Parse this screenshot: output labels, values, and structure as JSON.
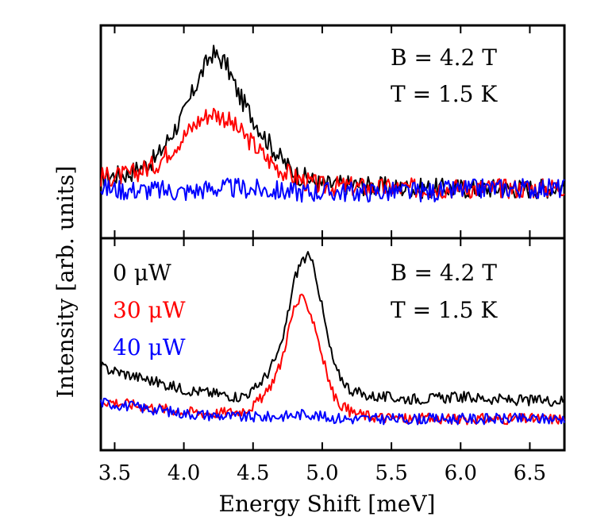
{
  "chart_data": [
    {
      "type": "line",
      "panel": "top",
      "xlim": [
        3.4,
        6.75
      ],
      "ylim": [
        -0.15,
        1.0
      ],
      "annotations": [
        "B = 4.2 T",
        "T = 1.5 K"
      ],
      "series": [
        {
          "name": "0 μW",
          "color": "#000000",
          "x": [
            3.4,
            3.6,
            3.8,
            4.0,
            4.1,
            4.2,
            4.3,
            4.4,
            4.5,
            4.6,
            4.7,
            4.8,
            4.9,
            5.0,
            5.2,
            5.4,
            5.6,
            5.8,
            6.0,
            6.2,
            6.4,
            6.6,
            6.75
          ],
          "values": [
            0.18,
            0.2,
            0.28,
            0.52,
            0.7,
            0.85,
            0.8,
            0.62,
            0.5,
            0.38,
            0.28,
            0.2,
            0.17,
            0.14,
            0.14,
            0.13,
            0.12,
            0.12,
            0.12,
            0.12,
            0.12,
            0.12,
            0.13
          ]
        },
        {
          "name": "30 μW",
          "color": "#ff0000",
          "x": [
            3.4,
            3.6,
            3.8,
            4.0,
            4.1,
            4.2,
            4.3,
            4.4,
            4.5,
            4.6,
            4.7,
            4.8,
            4.9,
            5.0,
            5.2,
            5.4,
            5.6,
            5.8,
            6.0,
            6.2,
            6.4,
            6.6,
            6.75
          ],
          "values": [
            0.18,
            0.19,
            0.25,
            0.4,
            0.48,
            0.53,
            0.5,
            0.43,
            0.36,
            0.28,
            0.22,
            0.18,
            0.15,
            0.13,
            0.13,
            0.12,
            0.12,
            0.12,
            0.12,
            0.12,
            0.12,
            0.12,
            0.13
          ]
        },
        {
          "name": "40 μW",
          "color": "#0000ff",
          "x": [
            3.4,
            3.6,
            3.8,
            4.0,
            4.2,
            4.4,
            4.6,
            4.8,
            5.0,
            5.2,
            5.4,
            5.6,
            5.8,
            6.0,
            6.2,
            6.4,
            6.6,
            6.75
          ],
          "values": [
            0.12,
            0.11,
            0.11,
            0.1,
            0.12,
            0.12,
            0.11,
            0.1,
            0.1,
            0.1,
            0.1,
            0.1,
            0.1,
            0.11,
            0.12,
            0.12,
            0.12,
            0.12
          ]
        }
      ]
    },
    {
      "type": "line",
      "panel": "bottom",
      "xlim": [
        3.4,
        6.75
      ],
      "ylim": [
        -0.15,
        1.0
      ],
      "annotations": [
        "B = 4.2 T",
        "T = 1.5 K"
      ],
      "series": [
        {
          "name": "0 μW",
          "color": "#000000",
          "x": [
            3.4,
            3.6,
            3.8,
            4.0,
            4.2,
            4.4,
            4.5,
            4.6,
            4.7,
            4.75,
            4.8,
            4.85,
            4.9,
            4.95,
            5.0,
            5.05,
            5.1,
            5.2,
            5.3,
            5.4,
            5.6,
            5.8,
            6.0,
            6.2,
            6.4,
            6.6,
            6.75
          ],
          "values": [
            0.3,
            0.26,
            0.22,
            0.18,
            0.16,
            0.14,
            0.17,
            0.26,
            0.4,
            0.58,
            0.78,
            0.88,
            0.9,
            0.82,
            0.62,
            0.42,
            0.28,
            0.18,
            0.15,
            0.14,
            0.13,
            0.13,
            0.14,
            0.13,
            0.12,
            0.12,
            0.12
          ]
        },
        {
          "name": "30 μW",
          "color": "#ff0000",
          "x": [
            3.4,
            3.6,
            3.8,
            4.0,
            4.2,
            4.4,
            4.5,
            4.6,
            4.7,
            4.75,
            4.8,
            4.85,
            4.9,
            4.95,
            5.0,
            5.05,
            5.1,
            5.2,
            5.3,
            5.4,
            5.6,
            5.8,
            6.0,
            6.2,
            6.4,
            6.6,
            6.75
          ],
          "values": [
            0.12,
            0.1,
            0.08,
            0.06,
            0.05,
            0.06,
            0.09,
            0.16,
            0.32,
            0.48,
            0.63,
            0.67,
            0.63,
            0.52,
            0.36,
            0.22,
            0.12,
            0.06,
            0.04,
            0.03,
            0.02,
            0.02,
            0.02,
            0.02,
            0.02,
            0.02,
            0.02
          ]
        },
        {
          "name": "40 μW",
          "color": "#0000ff",
          "x": [
            3.4,
            3.6,
            3.8,
            4.0,
            4.2,
            4.4,
            4.6,
            4.8,
            4.9,
            5.0,
            5.2,
            5.4,
            5.6,
            5.8,
            6.0,
            6.2,
            6.4,
            6.6,
            6.75
          ],
          "values": [
            0.11,
            0.09,
            0.07,
            0.05,
            0.04,
            0.03,
            0.03,
            0.04,
            0.05,
            0.03,
            0.02,
            0.02,
            0.02,
            0.02,
            0.02,
            0.02,
            0.02,
            0.02,
            0.02
          ]
        }
      ]
    }
  ],
  "axes": {
    "xlabel": "Energy Shift [meV]",
    "ylabel": "Intensity [arb. units]",
    "xticks": [
      "3.5",
      "4.0",
      "4.5",
      "5.0",
      "5.5",
      "6.0",
      "6.5"
    ],
    "xtick_values": [
      3.5,
      4.0,
      4.5,
      5.0,
      5.5,
      6.0,
      6.5
    ]
  },
  "annotation_top": {
    "line1": "B = 4.2 T",
    "line2": "T = 1.5 K"
  },
  "annotation_bottom": {
    "line1": "B = 4.2 T",
    "line2": "T = 1.5 K"
  },
  "legend": {
    "items": [
      {
        "label": "0 μW",
        "color": "#000000"
      },
      {
        "label": "30 μW",
        "color": "#ff0000"
      },
      {
        "label": "40 μW",
        "color": "#0000ff"
      }
    ]
  }
}
